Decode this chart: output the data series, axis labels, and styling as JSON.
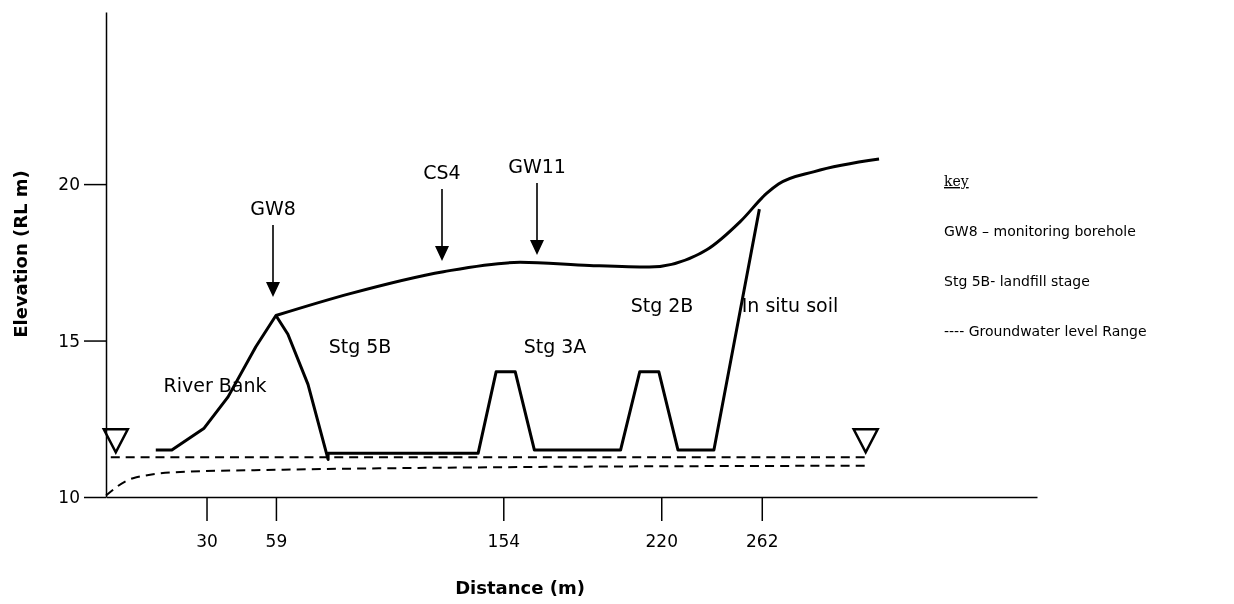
{
  "chart_data": {
    "type": "line",
    "xlabel": "Distance  (m)",
    "ylabel": "Elevation (RL m)",
    "xlim": [
      -12,
      377
    ],
    "ylim": [
      10,
      25.5
    ],
    "xticks": [
      30,
      59,
      154,
      220,
      262
    ],
    "yticks": [
      10,
      15,
      20
    ],
    "grid": false,
    "marker": "none",
    "series": [
      {
        "color": "#000000",
        "line_style": "solid",
        "x": [
          8.8,
          15.5,
          29,
          39,
          50.6,
          59,
          64,
          72.4,
          80.8,
          80.8,
          143.5,
          151,
          159,
          167,
          203,
          211,
          219,
          227,
          242,
          261
        ],
        "values": [
          11.5,
          11.5,
          12.2,
          13.2,
          14.8,
          15.8,
          15.2,
          13.6,
          11.2,
          11.4,
          11.4,
          14,
          14,
          11.5,
          11.5,
          14,
          14,
          11.5,
          11.5,
          19.2
        ]
      },
      {
        "color": "#000000",
        "line_style": "solid",
        "x": [
          59,
          90,
          129,
          161,
          190,
          215,
          239,
          253,
          264,
          269,
          284,
          311
        ],
        "values": [
          15.8,
          16.5,
          17.2,
          17.5,
          17.4,
          17.35,
          17.9,
          18.8,
          19.7,
          20,
          20.4,
          20.8
        ]
      },
      {
        "color": "#000000",
        "line_style": "dashed",
        "x": [
          -10,
          305
        ],
        "values": [
          11.27,
          11.27
        ]
      },
      {
        "color": "#000000",
        "line_style": "dashed",
        "x": [
          -12,
          -0.7,
          19,
          60.7,
          150,
          305
        ],
        "values": [
          10.05,
          10.6,
          10.8,
          10.87,
          10.95,
          11
        ]
      }
    ],
    "annotations": [
      "GW8",
      "CS4",
      "GW11",
      "River Bank",
      "Stg 5B",
      "Stg 3A",
      "Stg 2B",
      "In situ soil",
      "key",
      "GW8 –   monitoring borehole",
      "Stg 5B- landfill stage",
      "---- Groundwater level Range"
    ]
  }
}
